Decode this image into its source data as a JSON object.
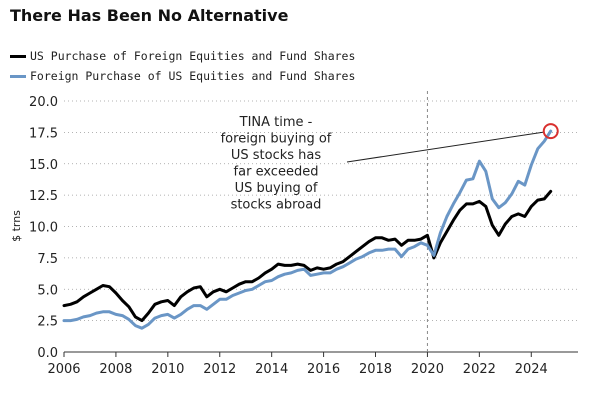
{
  "chart_data": {
    "type": "line",
    "title": "There Has Been No Alternative",
    "xlabel": "",
    "ylabel": "$ trns",
    "xlim": [
      2006,
      2025.8
    ],
    "ylim": [
      0,
      20
    ],
    "xticks": [
      "2006",
      "2008",
      "2010",
      "2012",
      "2014",
      "2016",
      "2018",
      "2020",
      "2022",
      "2024"
    ],
    "yticks": [
      "0.0",
      "2.5",
      "5.0",
      "7.5",
      "10.0",
      "12.5",
      "15.0",
      "17.5",
      "20.0"
    ],
    "grid": "horizontal dotted",
    "legend_position": "top-left",
    "vline_x": 2020.0,
    "annotation": {
      "lines": [
        "TINA time -",
        "foreign buying of",
        "US stocks has",
        "far exceeded",
        "US buying of",
        "stocks abroad"
      ],
      "target": [
        2024.75,
        17.6
      ]
    },
    "series": [
      {
        "name": "US Purchase of Foreign Equities and Fund Shares",
        "color": "#000000",
        "x": [
          2006.0,
          2006.25,
          2006.5,
          2006.75,
          2007.0,
          2007.25,
          2007.5,
          2007.75,
          2008.0,
          2008.25,
          2008.5,
          2008.75,
          2009.0,
          2009.25,
          2009.5,
          2009.75,
          2010.0,
          2010.25,
          2010.5,
          2010.75,
          2011.0,
          2011.25,
          2011.5,
          2011.75,
          2012.0,
          2012.25,
          2012.5,
          2012.75,
          2013.0,
          2013.25,
          2013.5,
          2013.75,
          2014.0,
          2014.25,
          2014.5,
          2014.75,
          2015.0,
          2015.25,
          2015.5,
          2015.75,
          2016.0,
          2016.25,
          2016.5,
          2016.75,
          2017.0,
          2017.25,
          2017.5,
          2017.75,
          2018.0,
          2018.25,
          2018.5,
          2018.75,
          2019.0,
          2019.25,
          2019.5,
          2019.75,
          2020.0,
          2020.25,
          2020.5,
          2020.75,
          2021.0,
          2021.25,
          2021.5,
          2021.75,
          2022.0,
          2022.25,
          2022.5,
          2022.75,
          2023.0,
          2023.25,
          2023.5,
          2023.75,
          2024.0,
          2024.25,
          2024.5,
          2024.75
        ],
        "values": [
          3.7,
          3.8,
          4.0,
          4.4,
          4.7,
          5.0,
          5.3,
          5.2,
          4.7,
          4.1,
          3.6,
          2.8,
          2.5,
          3.1,
          3.8,
          4.0,
          4.1,
          3.7,
          4.4,
          4.8,
          5.1,
          5.2,
          4.4,
          4.8,
          5.0,
          4.8,
          5.1,
          5.4,
          5.6,
          5.6,
          5.9,
          6.3,
          6.6,
          7.0,
          6.9,
          6.9,
          7.0,
          6.9,
          6.5,
          6.7,
          6.6,
          6.7,
          7.0,
          7.2,
          7.6,
          8.0,
          8.4,
          8.8,
          9.1,
          9.1,
          8.9,
          9.0,
          8.5,
          8.9,
          8.9,
          9.0,
          9.3,
          7.5,
          8.7,
          9.6,
          10.5,
          11.3,
          11.8,
          11.8,
          12.0,
          11.6,
          10.1,
          9.3,
          10.2,
          10.8,
          11.0,
          10.8,
          11.6,
          12.1,
          12.2,
          12.8
        ]
      },
      {
        "name": "Foreign Purchase of US Equities and Fund Shares",
        "color": "#6a96c6",
        "x": [
          2006.0,
          2006.25,
          2006.5,
          2006.75,
          2007.0,
          2007.25,
          2007.5,
          2007.75,
          2008.0,
          2008.25,
          2008.5,
          2008.75,
          2009.0,
          2009.25,
          2009.5,
          2009.75,
          2010.0,
          2010.25,
          2010.5,
          2010.75,
          2011.0,
          2011.25,
          2011.5,
          2011.75,
          2012.0,
          2012.25,
          2012.5,
          2012.75,
          2013.0,
          2013.25,
          2013.5,
          2013.75,
          2014.0,
          2014.25,
          2014.5,
          2014.75,
          2015.0,
          2015.25,
          2015.5,
          2015.75,
          2016.0,
          2016.25,
          2016.5,
          2016.75,
          2017.0,
          2017.25,
          2017.5,
          2017.75,
          2018.0,
          2018.25,
          2018.5,
          2018.75,
          2019.0,
          2019.25,
          2019.5,
          2019.75,
          2020.0,
          2020.25,
          2020.5,
          2020.75,
          2021.0,
          2021.25,
          2021.5,
          2021.75,
          2022.0,
          2022.25,
          2022.5,
          2022.75,
          2023.0,
          2023.25,
          2023.5,
          2023.75,
          2024.0,
          2024.25,
          2024.5,
          2024.75
        ],
        "values": [
          2.5,
          2.5,
          2.6,
          2.8,
          2.9,
          3.1,
          3.2,
          3.2,
          3.0,
          2.9,
          2.6,
          2.1,
          1.9,
          2.2,
          2.7,
          2.9,
          3.0,
          2.7,
          3.0,
          3.4,
          3.7,
          3.7,
          3.4,
          3.8,
          4.2,
          4.2,
          4.5,
          4.7,
          4.9,
          5.0,
          5.3,
          5.6,
          5.7,
          6.0,
          6.2,
          6.3,
          6.5,
          6.6,
          6.1,
          6.2,
          6.3,
          6.3,
          6.6,
          6.8,
          7.1,
          7.4,
          7.6,
          7.9,
          8.1,
          8.1,
          8.2,
          8.2,
          7.6,
          8.2,
          8.4,
          8.7,
          8.5,
          7.7,
          9.5,
          10.8,
          11.8,
          12.7,
          13.7,
          13.8,
          15.2,
          14.4,
          12.2,
          11.5,
          11.9,
          12.6,
          13.6,
          13.3,
          14.9,
          16.2,
          16.8,
          17.6
        ]
      }
    ]
  }
}
